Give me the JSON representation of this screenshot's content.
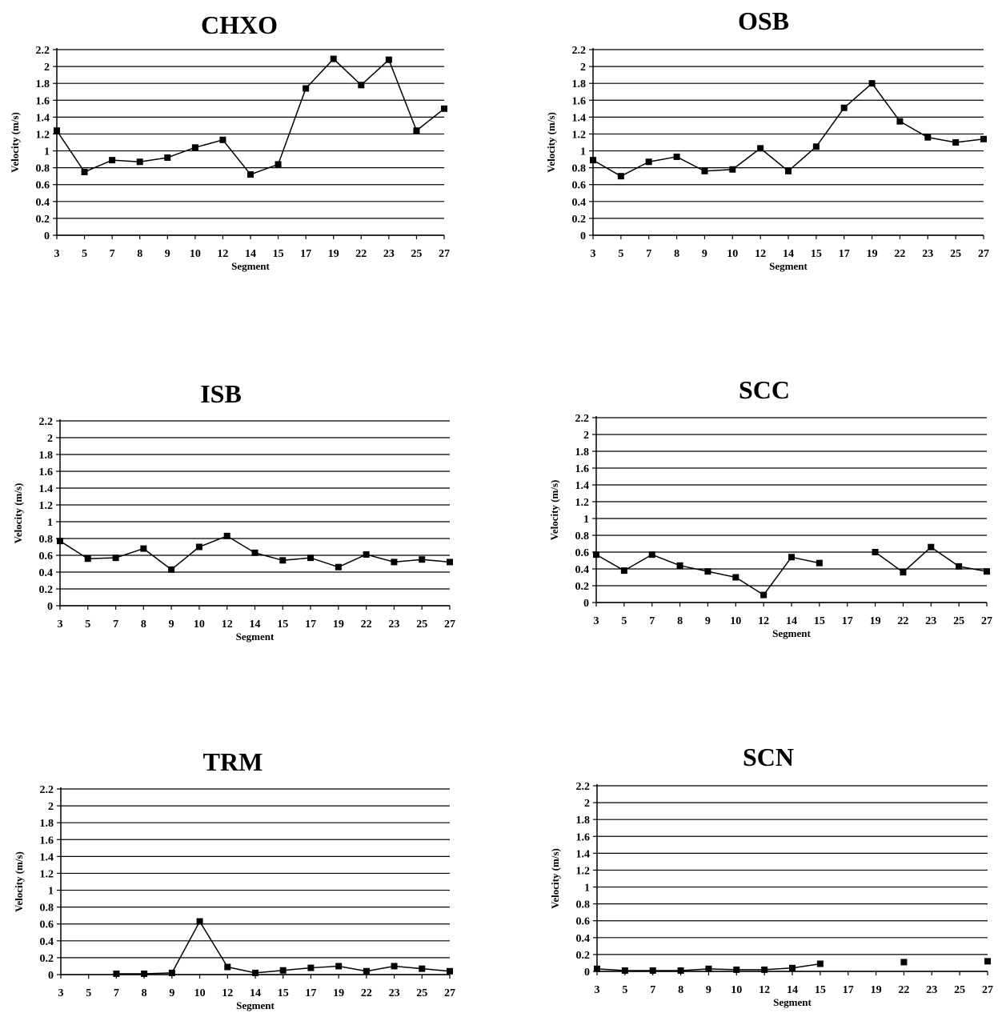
{
  "chart_data": [
    {
      "type": "line",
      "title": "CHXO",
      "xlabel": "Segment",
      "ylabel": "Velocity (m/s)",
      "ylim": [
        0,
        2.2
      ],
      "yticks": [
        "0",
        "0.2",
        "0.4",
        "0.6",
        "0.8",
        "1",
        "1.2",
        "1.4",
        "1.6",
        "1.8",
        "2",
        "2.2"
      ],
      "grid": true,
      "categories": [
        "3",
        "5",
        "7",
        "8",
        "9",
        "10",
        "12",
        "14",
        "15",
        "17",
        "19",
        "22",
        "23",
        "25",
        "27"
      ],
      "series": [
        {
          "values": [
            1.24,
            0.75,
            0.89,
            0.87,
            0.92,
            1.04,
            1.13,
            0.72,
            0.84,
            1.74,
            2.09,
            1.78,
            2.08,
            1.24,
            1.5
          ]
        }
      ]
    },
    {
      "type": "line",
      "title": "OSB",
      "xlabel": "Segment",
      "ylabel": "Velocity (m/s)",
      "ylim": [
        0,
        2.2
      ],
      "yticks": [
        "0",
        "0.2",
        "0.4",
        "0.6",
        "0.8",
        "1",
        "1.2",
        "1.4",
        "1.6",
        "1.8",
        "2",
        "2.2"
      ],
      "grid": true,
      "categories": [
        "3",
        "5",
        "7",
        "8",
        "9",
        "10",
        "12",
        "14",
        "15",
        "17",
        "19",
        "22",
        "23",
        "25",
        "27"
      ],
      "series": [
        {
          "values": [
            0.89,
            0.7,
            0.87,
            0.93,
            0.76,
            0.78,
            1.03,
            0.76,
            1.05,
            1.51,
            1.8,
            1.35,
            1.16,
            1.1,
            1.14
          ]
        }
      ]
    },
    {
      "type": "line",
      "title": "ISB",
      "xlabel": "Segment",
      "ylabel": "Velocity (m/s)",
      "ylim": [
        0,
        2.2
      ],
      "yticks": [
        "0",
        "0.2",
        "0.4",
        "0.6",
        "0.8",
        "1",
        "1.2",
        "1.4",
        "1.6",
        "1.8",
        "2",
        "2.2"
      ],
      "grid": true,
      "categories": [
        "3",
        "5",
        "7",
        "8",
        "9",
        "10",
        "12",
        "14",
        "15",
        "17",
        "19",
        "22",
        "23",
        "25",
        "27"
      ],
      "series": [
        {
          "values": [
            0.77,
            0.56,
            0.57,
            0.68,
            0.43,
            0.7,
            0.83,
            0.63,
            0.54,
            0.57,
            0.46,
            0.61,
            0.52,
            0.55,
            0.52
          ]
        }
      ]
    },
    {
      "type": "line",
      "title": "SCC",
      "xlabel": "Segment",
      "ylabel": "Velocity (m/s)",
      "ylim": [
        0,
        2.2
      ],
      "yticks": [
        "0",
        "0.2",
        "0.4",
        "0.6",
        "0.8",
        "1",
        "1.2",
        "1.4",
        "1.6",
        "1.8",
        "2",
        "2.2"
      ],
      "grid": true,
      "categories": [
        "3",
        "5",
        "7",
        "8",
        "9",
        "10",
        "12",
        "14",
        "15",
        "17",
        "19",
        "22",
        "23",
        "25",
        "27"
      ],
      "series": [
        {
          "values": [
            0.57,
            0.38,
            0.57,
            0.44,
            0.37,
            0.3,
            0.09,
            0.54,
            0.47,
            null,
            0.6,
            0.36,
            0.66,
            0.43,
            0.37
          ]
        }
      ]
    },
    {
      "type": "line",
      "title": "TRM",
      "xlabel": "Segment",
      "ylabel": "Velocity (m/s)",
      "ylim": [
        0,
        2.2
      ],
      "yticks": [
        "0",
        "0.2",
        "0.4",
        "0.6",
        "0.8",
        "1",
        "1.2",
        "1.4",
        "1.6",
        "1.8",
        "2",
        "2.2"
      ],
      "grid": true,
      "categories": [
        "3",
        "5",
        "7",
        "8",
        "9",
        "10",
        "12",
        "14",
        "15",
        "17",
        "19",
        "22",
        "23",
        "25",
        "27"
      ],
      "series": [
        {
          "values": [
            null,
            null,
            0.01,
            0.01,
            0.02,
            0.63,
            0.09,
            0.02,
            0.05,
            0.08,
            0.1,
            0.04,
            0.1,
            0.07,
            0.04
          ]
        }
      ]
    },
    {
      "type": "line",
      "title": "SCN",
      "xlabel": "Segment",
      "ylabel": "Velocity (m/s)",
      "ylim": [
        0,
        2.2
      ],
      "yticks": [
        "0",
        "0.2",
        "0.4",
        "0.6",
        "0.8",
        "1",
        "1.2",
        "1.4",
        "1.6",
        "1.8",
        "2",
        "2.2"
      ],
      "grid": true,
      "categories": [
        "3",
        "5",
        "7",
        "8",
        "9",
        "10",
        "12",
        "14",
        "15",
        "17",
        "19",
        "22",
        "23",
        "25",
        "27"
      ],
      "series": [
        {
          "values": [
            0.03,
            0.01,
            0.01,
            0.01,
            0.03,
            0.02,
            0.02,
            0.04,
            0.09,
            null,
            null,
            0.11,
            null,
            null,
            0.12
          ]
        }
      ]
    }
  ]
}
